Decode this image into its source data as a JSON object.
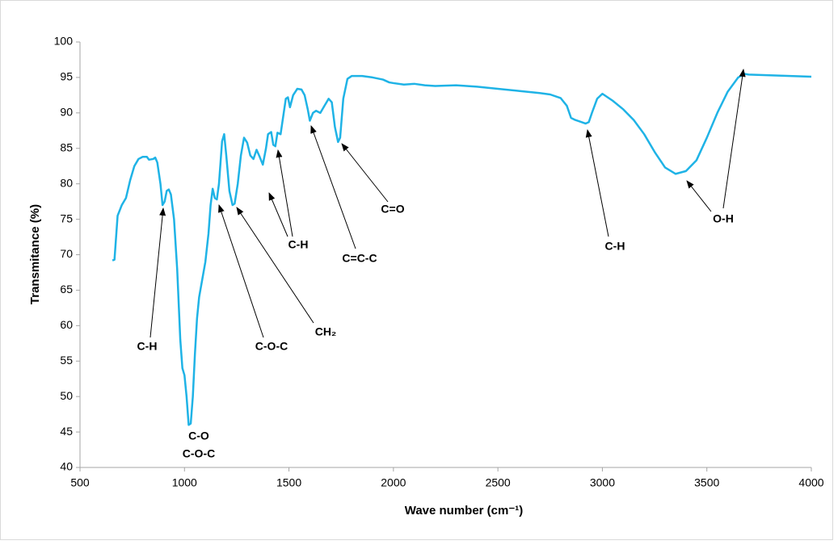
{
  "chart_data": {
    "type": "line",
    "xlabel": "Wave number (cm⁻¹)",
    "ylabel": "Transmitance (%)",
    "xlim": [
      500,
      4000
    ],
    "xticks": [
      500,
      1000,
      1500,
      2000,
      2500,
      3000,
      3500,
      4000
    ],
    "ylim": [
      40,
      100
    ],
    "yticks": [
      40,
      45,
      50,
      55,
      60,
      65,
      70,
      75,
      80,
      85,
      90,
      95,
      100
    ],
    "grid": false,
    "series": [
      {
        "color": "#1fb3e6",
        "x": [
          655,
          665,
          680,
          700,
          720,
          740,
          760,
          780,
          800,
          820,
          830,
          850,
          860,
          870,
          885,
          895,
          905,
          915,
          925,
          935,
          950,
          965,
          980,
          990,
          1000,
          1010,
          1020,
          1030,
          1040,
          1050,
          1060,
          1070,
          1085,
          1100,
          1115,
          1125,
          1135,
          1145,
          1155,
          1165,
          1180,
          1190,
          1200,
          1215,
          1230,
          1240,
          1255,
          1270,
          1285,
          1300,
          1315,
          1330,
          1345,
          1360,
          1375,
          1390,
          1400,
          1415,
          1425,
          1435,
          1445,
          1460,
          1475,
          1485,
          1495,
          1505,
          1520,
          1540,
          1560,
          1575,
          1590,
          1600,
          1615,
          1630,
          1650,
          1670,
          1690,
          1705,
          1720,
          1735,
          1745,
          1760,
          1780,
          1800,
          1850,
          1900,
          1950,
          1980,
          2000,
          2050,
          2100,
          2150,
          2200,
          2300,
          2400,
          2500,
          2600,
          2700,
          2750,
          2800,
          2830,
          2850,
          2870,
          2890,
          2920,
          2935,
          2950,
          2975,
          3000,
          3050,
          3100,
          3150,
          3200,
          3250,
          3300,
          3350,
          3400,
          3450,
          3500,
          3550,
          3600,
          3650,
          3680,
          3700,
          3800,
          3900,
          4000
        ],
        "values": [
          69.2,
          69.3,
          75.5,
          77,
          78,
          80.5,
          82.5,
          83.5,
          83.8,
          83.8,
          83.4,
          83.5,
          83.7,
          83,
          80,
          77,
          77.5,
          79,
          79.2,
          78.5,
          75,
          68,
          58,
          54,
          53,
          50,
          46,
          46.2,
          50,
          56,
          61,
          64,
          66.5,
          69,
          73,
          77,
          79.3,
          78,
          77.8,
          80,
          86,
          87,
          84,
          79,
          77,
          77.2,
          80,
          84,
          86.5,
          85.8,
          84,
          83.5,
          84.8,
          83.8,
          82.7,
          85,
          87,
          87.3,
          85.5,
          85.3,
          87.2,
          87,
          90,
          92,
          92.2,
          90.8,
          92.5,
          93.4,
          93.3,
          92.5,
          90.5,
          88.9,
          90,
          90.3,
          90,
          91,
          92,
          91.5,
          88,
          85.9,
          86.5,
          92,
          94.8,
          95.2,
          95.2,
          95,
          94.7,
          94.3,
          94.2,
          94,
          94.1,
          93.9,
          93.8,
          93.9,
          93.7,
          93.4,
          93.1,
          92.8,
          92.6,
          92.1,
          91,
          89.3,
          89,
          88.8,
          88.5,
          88.7,
          90,
          92,
          92.7,
          91.7,
          90.5,
          89,
          87,
          84.5,
          82.3,
          81.4,
          81.8,
          83.3,
          86.5,
          90,
          93,
          95,
          95.5,
          95.4,
          95.3,
          95.2,
          95.1
        ]
      }
    ],
    "annotations": [
      "C-H",
      "C-O",
      "C-O-C",
      "C-O-C",
      "CH₂",
      "C-H",
      "C=C-C",
      "C=O",
      "C-H",
      "O-H"
    ]
  }
}
